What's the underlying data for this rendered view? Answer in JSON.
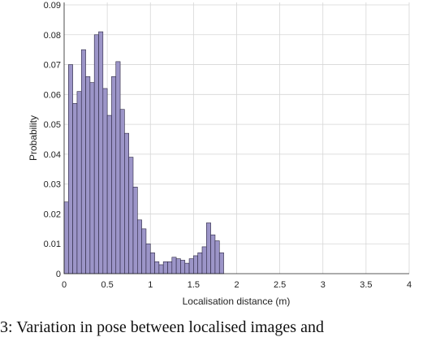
{
  "chart_data": {
    "type": "bar",
    "xlabel": "Localisation distance (m)",
    "ylabel": "Probability",
    "xlim": [
      0,
      4
    ],
    "ylim": [
      0,
      0.09
    ],
    "xticks": [
      "0",
      "0.5",
      "1",
      "1.5",
      "2",
      "2.5",
      "3",
      "3.5",
      "4"
    ],
    "yticks": [
      "0",
      "0.01",
      "0.02",
      "0.03",
      "0.04",
      "0.05",
      "0.06",
      "0.07",
      "0.08",
      "0.09"
    ],
    "grid": true,
    "bin_width": 0.05,
    "bin_start": 0.0,
    "values": [
      0.024,
      0.07,
      0.057,
      0.061,
      0.075,
      0.066,
      0.064,
      0.08,
      0.081,
      0.062,
      0.053,
      0.066,
      0.071,
      0.055,
      0.047,
      0.039,
      0.029,
      0.018,
      0.015,
      0.01,
      0.007,
      0.004,
      0.003,
      0.004,
      0.004,
      0.0055,
      0.005,
      0.0045,
      0.0035,
      0.005,
      0.006,
      0.007,
      0.009,
      0.017,
      0.013,
      0.011,
      0.007,
      0.0,
      0.0,
      0.0,
      0.0,
      0.0,
      0.0,
      0.0,
      0.0,
      0.0,
      0.0,
      0.0,
      0.0,
      0.0,
      0.0,
      0.0,
      0.0,
      0.0,
      0.0,
      0.0,
      0.0,
      0.0,
      0.0,
      0.0,
      0.0,
      0.0,
      0.0,
      0.0,
      0.0,
      0.0,
      0.0,
      0.0,
      0.0,
      0.0,
      0.0
    ]
  },
  "caption": "3: Variation in pose between localised images and"
}
